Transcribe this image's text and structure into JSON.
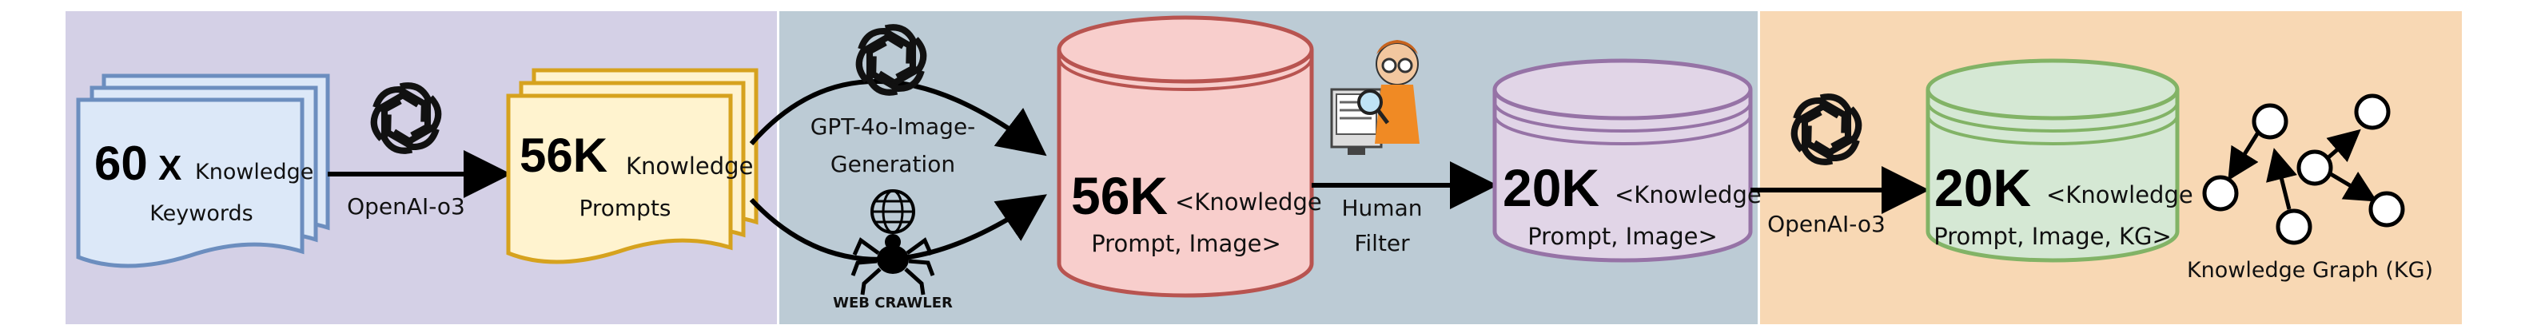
{
  "stage1": {
    "keywords_doc": {
      "count": "60",
      "mult": "X",
      "line1": "Knowledge",
      "line2": "Keywords"
    },
    "arrow_label": "OpenAI-o3",
    "prompts_doc": {
      "count": "56K",
      "line1": "Knowledge",
      "line2": "Prompts"
    }
  },
  "stage2": {
    "gen_label_line1": "GPT-4o-Image-",
    "gen_label_line2": "Generation",
    "crawler_label": "WEB CRAWLER",
    "db": {
      "count": "56K",
      "line1": "<Knowledge",
      "line2": "Prompt, Image>"
    },
    "filter_label_line1": "Human",
    "filter_label_line2": "Filter",
    "db_filtered": {
      "count": "20K",
      "line1": "<Knowledge",
      "line2": "Prompt, Image>"
    }
  },
  "stage3": {
    "arrow_label": "OpenAI-o3",
    "db_kg": {
      "count": "20K",
      "line1": "<Knowledge",
      "line2": "Prompt, Image, KG>"
    },
    "kg_label": "Knowledge Graph (KG)"
  },
  "colors": {
    "panel1": "#d4d0e6",
    "panel2": "#bccbd5",
    "panel3": "#f8d8b4",
    "doc_blue_fill": "#dce8f8",
    "doc_blue_stroke": "#6c8ebf",
    "doc_yellow_fill": "#fff3cf",
    "doc_yellow_stroke": "#d6a21e",
    "db_red_fill": "#f8cecc",
    "db_red_stroke": "#b85450",
    "db_purple_fill": "#e1d5e7",
    "db_purple_stroke": "#9673a6",
    "db_green_fill": "#d5e8d4",
    "db_green_stroke": "#82b366"
  },
  "icons": [
    "openai-icon",
    "globe-icon",
    "spider-icon",
    "human-inspector-icon",
    "graph-node-icon"
  ]
}
